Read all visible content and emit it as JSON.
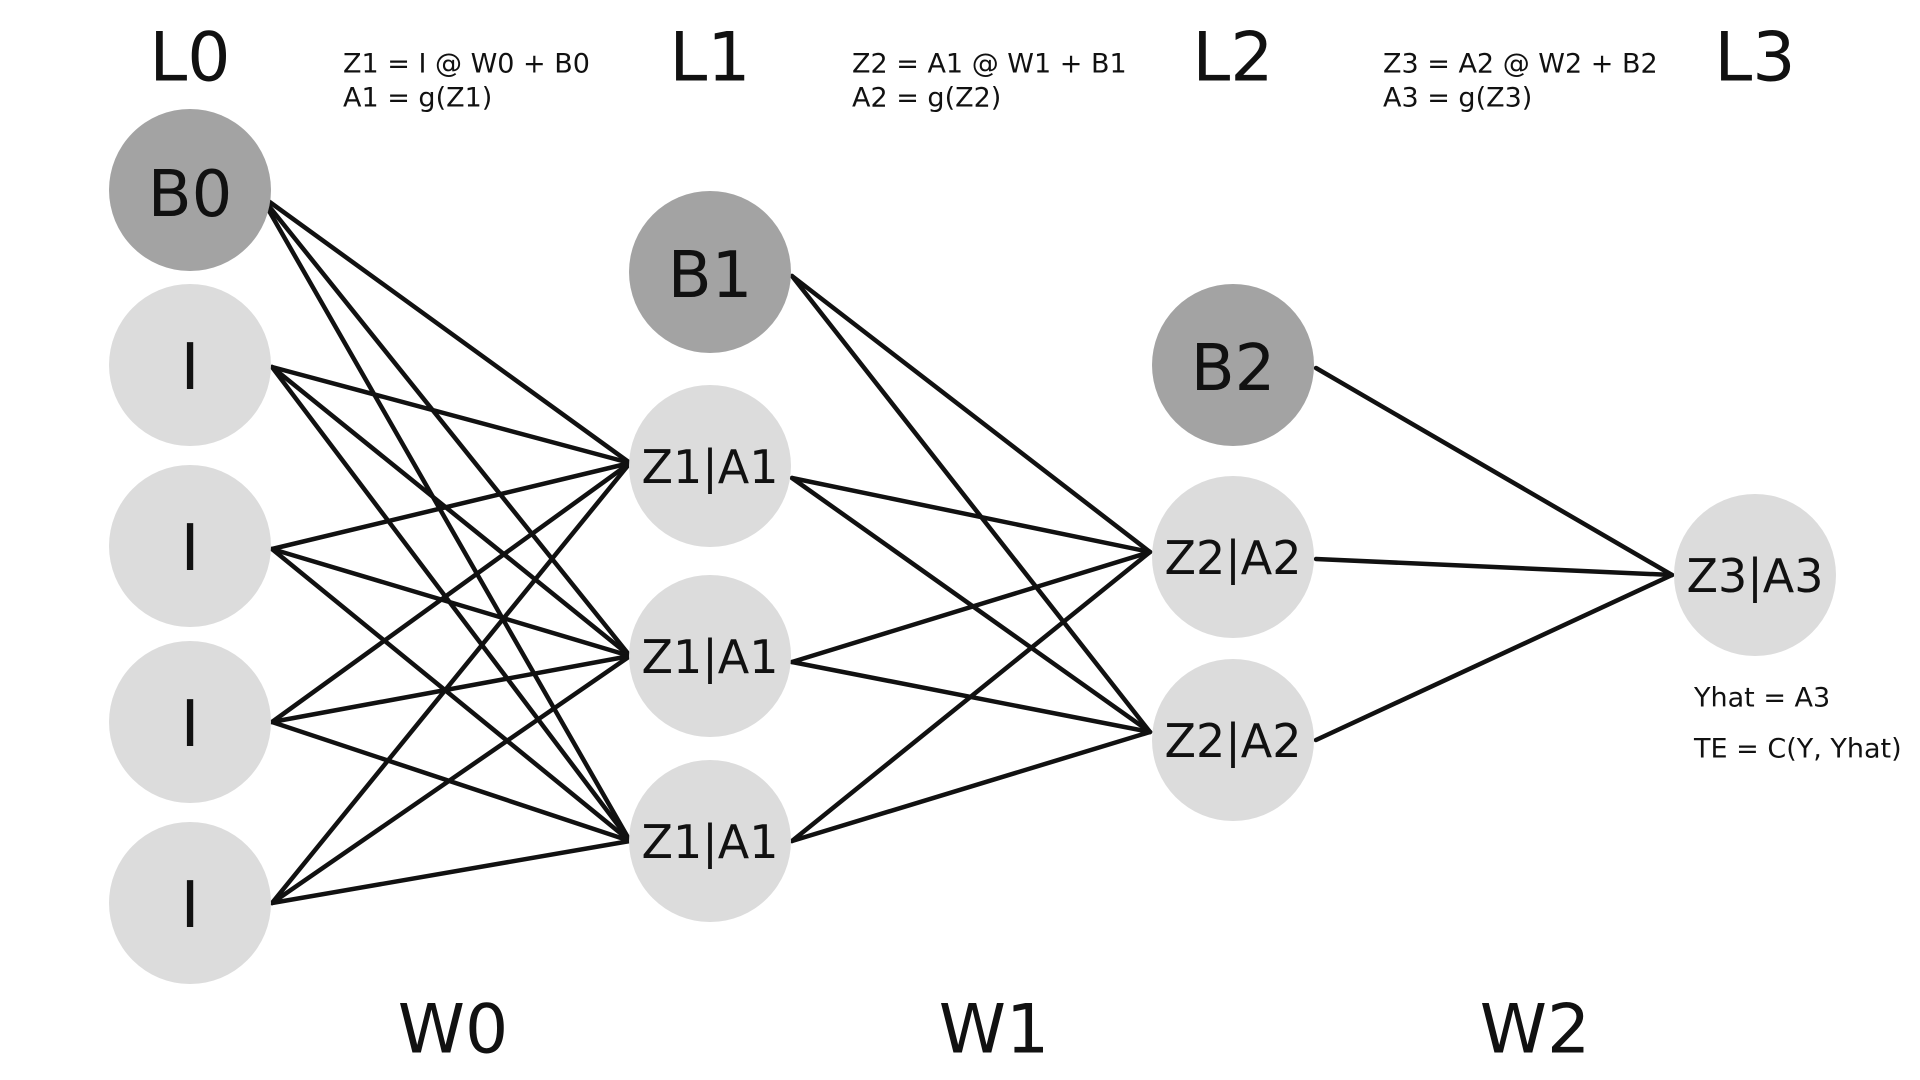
{
  "colors": {
    "bias_node": "#a3a3a3",
    "neuron_node": "#dcdcdc",
    "edge": "#111111",
    "text": "#111111",
    "background": "#ffffff"
  },
  "layers": [
    {
      "label": "L0"
    },
    {
      "label": "L1"
    },
    {
      "label": "L2"
    },
    {
      "label": "L3"
    }
  ],
  "weights": [
    {
      "label": "W0"
    },
    {
      "label": "W1"
    },
    {
      "label": "W2"
    }
  ],
  "equations": [
    {
      "line1": "Z1 = I @ W0 + B0",
      "line2": "A1 = g(Z1)"
    },
    {
      "line1": "Z2 = A1 @ W1 + B1",
      "line2": "A2 = g(Z2)"
    },
    {
      "line1": "Z3 = A2 @ W2 + B2",
      "line2": "A3 = g(Z3)"
    }
  ],
  "nodes": {
    "layer0": {
      "bias": {
        "label": "B0"
      },
      "inputs": [
        {
          "label": "I"
        },
        {
          "label": "I"
        },
        {
          "label": "I"
        },
        {
          "label": "I"
        }
      ]
    },
    "layer1": {
      "bias": {
        "label": "B1"
      },
      "neurons": [
        {
          "label": "Z1|A1"
        },
        {
          "label": "Z1|A1"
        },
        {
          "label": "Z1|A1"
        }
      ]
    },
    "layer2": {
      "bias": {
        "label": "B2"
      },
      "neurons": [
        {
          "label": "Z2|A2"
        },
        {
          "label": "Z2|A2"
        }
      ]
    },
    "layer3": {
      "output": {
        "label": "Z3|A3"
      }
    }
  },
  "output_notes": {
    "line1": "Yhat = A3",
    "line2": "TE = C(Y, Yhat)"
  }
}
